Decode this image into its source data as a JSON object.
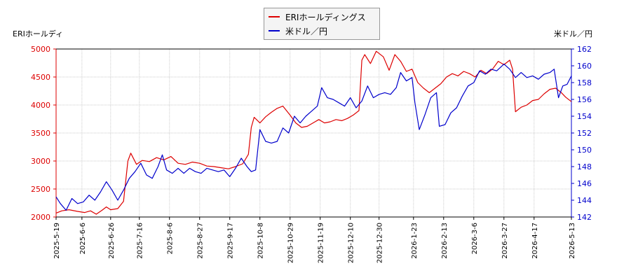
{
  "chart_data": {
    "type": "line",
    "y_left_title": "ERIホールディ",
    "y_right_title": "米ドル／円",
    "y_left_lim": [
      2000,
      5000
    ],
    "y_right_lim": [
      142,
      162
    ],
    "y_left_ticks": [
      "2000",
      "2500",
      "3000",
      "3500",
      "4000",
      "4500",
      "5000"
    ],
    "y_right_ticks": [
      "142",
      "144",
      "146",
      "148",
      "150",
      "152",
      "154",
      "156",
      "158",
      "160",
      "162"
    ],
    "x_range": [
      "2025-5-19",
      "2026-5-13"
    ],
    "x_ticks": [
      "2025-5-19",
      "2025-6-6",
      "2025-6-26",
      "2025-7-16",
      "2025-8-6",
      "2025-8-27",
      "2025-9-17",
      "2025-10-8",
      "2025-10-29",
      "2025-11-19",
      "2025-12-10",
      "2025-12-30",
      "2026-1-23",
      "2026-2-13",
      "2026-3-6",
      "2026-3-27",
      "2026-4-17",
      "2026-5-13"
    ],
    "grid": true,
    "legend_placement": "top-center",
    "series": [
      {
        "name": "ERIホールディングス",
        "axis": "left",
        "color": "#dd0000",
        "points": [
          [
            "2025-5-19",
            2070
          ],
          [
            "2025-5-23",
            2110
          ],
          [
            "2025-5-28",
            2130
          ],
          [
            "2025-6-3",
            2100
          ],
          [
            "2025-6-8",
            2080
          ],
          [
            "2025-6-12",
            2110
          ],
          [
            "2025-6-16",
            2050
          ],
          [
            "2025-6-20",
            2120
          ],
          [
            "2025-6-23",
            2180
          ],
          [
            "2025-6-26",
            2130
          ],
          [
            "2025-7-1",
            2150
          ],
          [
            "2025-7-5",
            2280
          ],
          [
            "2025-7-8",
            3000
          ],
          [
            "2025-7-10",
            3140
          ],
          [
            "2025-7-14",
            2940
          ],
          [
            "2025-7-18",
            3010
          ],
          [
            "2025-7-23",
            2990
          ],
          [
            "2025-7-28",
            3060
          ],
          [
            "2025-8-2",
            3020
          ],
          [
            "2025-8-7",
            3080
          ],
          [
            "2025-8-12",
            2960
          ],
          [
            "2025-8-17",
            2940
          ],
          [
            "2025-8-22",
            2980
          ],
          [
            "2025-8-27",
            2960
          ],
          [
            "2025-9-1",
            2910
          ],
          [
            "2025-9-6",
            2900
          ],
          [
            "2025-9-11",
            2880
          ],
          [
            "2025-9-16",
            2860
          ],
          [
            "2025-9-21",
            2900
          ],
          [
            "2025-9-26",
            2950
          ],
          [
            "2025-9-30",
            3120
          ],
          [
            "2025-10-2",
            3600
          ],
          [
            "2025-10-4",
            3780
          ],
          [
            "2025-10-8",
            3680
          ],
          [
            "2025-10-12",
            3790
          ],
          [
            "2025-10-16",
            3870
          ],
          [
            "2025-10-20",
            3940
          ],
          [
            "2025-10-24",
            3980
          ],
          [
            "2025-10-29",
            3820
          ],
          [
            "2025-11-2",
            3680
          ],
          [
            "2025-11-6",
            3600
          ],
          [
            "2025-11-10",
            3620
          ],
          [
            "2025-11-14",
            3680
          ],
          [
            "2025-11-18",
            3740
          ],
          [
            "2025-11-22",
            3680
          ],
          [
            "2025-11-26",
            3700
          ],
          [
            "2025-11-30",
            3740
          ],
          [
            "2025-12-4",
            3720
          ],
          [
            "2025-12-8",
            3760
          ],
          [
            "2025-12-12",
            3820
          ],
          [
            "2025-12-16",
            3900
          ],
          [
            "2025-12-18",
            4800
          ],
          [
            "2025-12-20",
            4900
          ],
          [
            "2025-12-24",
            4740
          ],
          [
            "2025-12-28",
            4960
          ],
          [
            "2026-1-2",
            4860
          ],
          [
            "2026-1-6",
            4620
          ],
          [
            "2026-1-10",
            4900
          ],
          [
            "2026-1-14",
            4780
          ],
          [
            "2026-1-18",
            4600
          ],
          [
            "2026-1-22",
            4640
          ],
          [
            "2026-1-26",
            4400
          ],
          [
            "2026-1-30",
            4300
          ],
          [
            "2026-2-3",
            4220
          ],
          [
            "2026-2-7",
            4300
          ],
          [
            "2026-2-11",
            4380
          ],
          [
            "2026-2-15",
            4500
          ],
          [
            "2026-2-19",
            4560
          ],
          [
            "2026-2-23",
            4520
          ],
          [
            "2026-2-27",
            4600
          ],
          [
            "2026-3-3",
            4560
          ],
          [
            "2026-3-7",
            4500
          ],
          [
            "2026-3-11",
            4620
          ],
          [
            "2026-3-15",
            4560
          ],
          [
            "2026-3-19",
            4640
          ],
          [
            "2026-3-23",
            4780
          ],
          [
            "2026-3-27",
            4720
          ],
          [
            "2026-3-31",
            4800
          ],
          [
            "2026-4-2",
            4640
          ],
          [
            "2026-4-4",
            3880
          ],
          [
            "2026-4-8",
            3960
          ],
          [
            "2026-4-12",
            4000
          ],
          [
            "2026-4-16",
            4080
          ],
          [
            "2026-4-20",
            4100
          ],
          [
            "2026-4-24",
            4200
          ],
          [
            "2026-4-28",
            4280
          ],
          [
            "2026-5-2",
            4300
          ],
          [
            "2026-5-6",
            4220
          ],
          [
            "2026-5-9",
            4140
          ],
          [
            "2026-5-13",
            4060
          ]
        ]
      },
      {
        "name": "米ドル／円",
        "axis": "right",
        "color": "#0000cc",
        "points": [
          [
            "2025-5-19",
            144.4
          ],
          [
            "2025-5-22",
            143.6
          ],
          [
            "2025-5-26",
            142.8
          ],
          [
            "2025-5-30",
            144.2
          ],
          [
            "2025-6-3",
            143.6
          ],
          [
            "2025-6-7",
            143.8
          ],
          [
            "2025-6-11",
            144.6
          ],
          [
            "2025-6-15",
            144.0
          ],
          [
            "2025-6-19",
            145.0
          ],
          [
            "2025-6-23",
            146.2
          ],
          [
            "2025-6-27",
            145.2
          ],
          [
            "2025-7-1",
            144.0
          ],
          [
            "2025-7-5",
            145.2
          ],
          [
            "2025-7-9",
            146.6
          ],
          [
            "2025-7-13",
            147.4
          ],
          [
            "2025-7-17",
            148.4
          ],
          [
            "2025-7-21",
            147.0
          ],
          [
            "2025-7-25",
            146.6
          ],
          [
            "2025-7-29",
            148.0
          ],
          [
            "2025-8-1",
            149.4
          ],
          [
            "2025-8-4",
            147.6
          ],
          [
            "2025-8-8",
            147.2
          ],
          [
            "2025-8-12",
            147.8
          ],
          [
            "2025-8-16",
            147.2
          ],
          [
            "2025-8-20",
            147.8
          ],
          [
            "2025-8-24",
            147.4
          ],
          [
            "2025-8-28",
            147.2
          ],
          [
            "2025-9-1",
            147.8
          ],
          [
            "2025-9-5",
            147.6
          ],
          [
            "2025-9-9",
            147.4
          ],
          [
            "2025-9-13",
            147.6
          ],
          [
            "2025-9-17",
            146.8
          ],
          [
            "2025-9-21",
            147.8
          ],
          [
            "2025-9-25",
            149.0
          ],
          [
            "2025-9-29",
            148.0
          ],
          [
            "2025-10-2",
            147.4
          ],
          [
            "2025-10-5",
            147.6
          ],
          [
            "2025-10-8",
            152.4
          ],
          [
            "2025-10-12",
            151.0
          ],
          [
            "2025-10-16",
            150.8
          ],
          [
            "2025-10-20",
            151.0
          ],
          [
            "2025-10-24",
            152.6
          ],
          [
            "2025-10-28",
            152.0
          ],
          [
            "2025-11-1",
            154.0
          ],
          [
            "2025-11-5",
            153.2
          ],
          [
            "2025-11-9",
            154.0
          ],
          [
            "2025-11-13",
            154.6
          ],
          [
            "2025-11-17",
            155.2
          ],
          [
            "2025-11-20",
            157.4
          ],
          [
            "2025-11-24",
            156.2
          ],
          [
            "2025-11-28",
            156.0
          ],
          [
            "2025-12-2",
            155.6
          ],
          [
            "2025-12-6",
            155.2
          ],
          [
            "2025-12-10",
            156.2
          ],
          [
            "2025-12-14",
            155.0
          ],
          [
            "2025-12-18",
            155.8
          ],
          [
            "2025-12-22",
            157.6
          ],
          [
            "2025-12-26",
            156.2
          ],
          [
            "2025-12-30",
            156.6
          ],
          [
            "2026-1-3",
            156.8
          ],
          [
            "2026-1-7",
            156.6
          ],
          [
            "2026-1-11",
            157.4
          ],
          [
            "2026-1-14",
            159.2
          ],
          [
            "2026-1-18",
            158.2
          ],
          [
            "2026-1-22",
            158.6
          ],
          [
            "2026-1-24",
            155.6
          ],
          [
            "2026-1-27",
            152.4
          ],
          [
            "2026-1-31",
            154.2
          ],
          [
            "2026-2-4",
            156.2
          ],
          [
            "2026-2-8",
            156.8
          ],
          [
            "2026-2-10",
            152.8
          ],
          [
            "2026-2-14",
            153.0
          ],
          [
            "2026-2-18",
            154.4
          ],
          [
            "2026-2-22",
            155.0
          ],
          [
            "2026-2-26",
            156.4
          ],
          [
            "2026-3-2",
            157.6
          ],
          [
            "2026-3-6",
            158.0
          ],
          [
            "2026-3-10",
            159.4
          ],
          [
            "2026-3-14",
            159.0
          ],
          [
            "2026-3-18",
            159.6
          ],
          [
            "2026-3-22",
            159.4
          ],
          [
            "2026-3-27",
            160.2
          ],
          [
            "2026-3-31",
            159.6
          ],
          [
            "2026-4-4",
            158.6
          ],
          [
            "2026-4-8",
            159.2
          ],
          [
            "2026-4-12",
            158.6
          ],
          [
            "2026-4-16",
            158.8
          ],
          [
            "2026-4-20",
            158.4
          ],
          [
            "2026-4-24",
            159.0
          ],
          [
            "2026-4-28",
            159.2
          ],
          [
            "2026-5-1",
            159.6
          ],
          [
            "2026-5-4",
            156.2
          ],
          [
            "2026-5-7",
            157.6
          ],
          [
            "2026-5-10",
            157.8
          ],
          [
            "2026-5-13",
            158.8
          ]
        ]
      }
    ]
  }
}
